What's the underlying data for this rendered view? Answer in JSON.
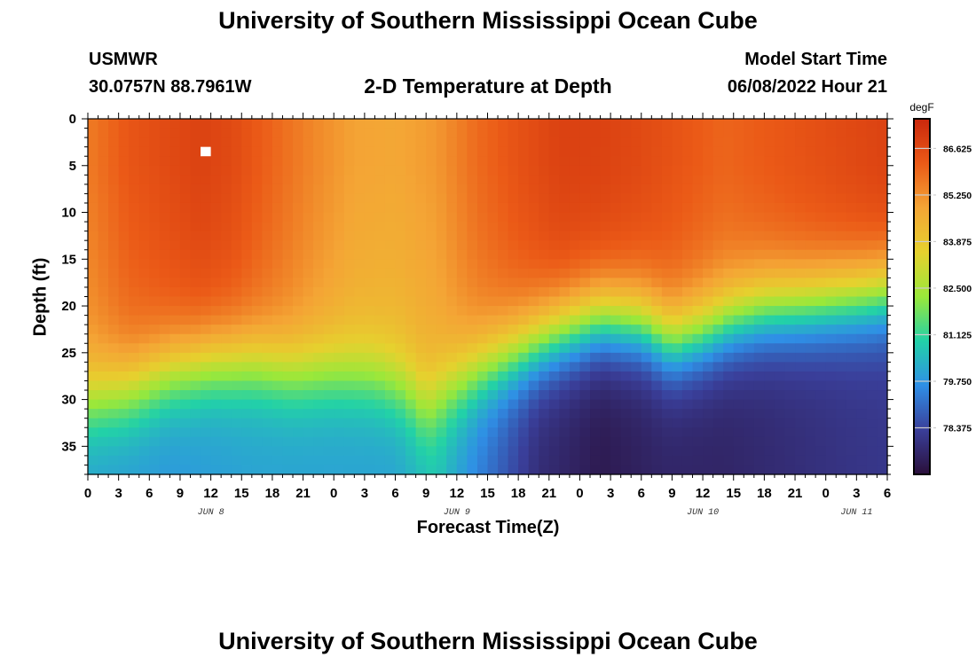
{
  "header": {
    "title": "University of Southern Mississippi Ocean Cube",
    "station": "USMWR",
    "coords": "30.0757N  88.7961W",
    "model_start_label": "Model Start Time",
    "model_start_value": "06/08/2022 Hour 21",
    "plot_title": "2-D Temperature at Depth"
  },
  "footer": {
    "title": "University of Southern Mississippi Ocean Cube"
  },
  "colors": {
    "palette": [
      "#2a0f3a",
      "#3a3f9a",
      "#2f8fe6",
      "#22d1a8",
      "#9ae83a",
      "#e6d12e",
      "#f4a535",
      "#eb5a17",
      "#c9270c"
    ],
    "missing_cell": "#ffffff"
  },
  "chart_data": {
    "type": "heatmap",
    "title": "2-D Temperature at Depth",
    "xlabel": "Forecast Time(Z)",
    "ylabel": "Depth (ft)",
    "x_tick_labels": [
      "0",
      "3",
      "6",
      "9",
      "12",
      "15",
      "18",
      "21",
      "0",
      "3",
      "6",
      "9",
      "12",
      "15",
      "18",
      "21",
      "0",
      "3",
      "6",
      "9",
      "12",
      "15",
      "18",
      "21",
      "0",
      "3",
      "6"
    ],
    "x_range_hours": [
      0,
      78
    ],
    "date_labels": [
      {
        "hour": 12,
        "text": "JUN 8"
      },
      {
        "hour": 36,
        "text": "JUN 9"
      },
      {
        "hour": 60,
        "text": "JUN 10"
      },
      {
        "hour": 75,
        "text": "JUN 11"
      }
    ],
    "y_ticks": [
      0,
      5,
      10,
      15,
      20,
      25,
      30,
      35
    ],
    "y_range_ft": [
      0,
      38
    ],
    "y_inverted": true,
    "colorbar": {
      "label": "degF",
      "min": 77.0,
      "max": 87.5,
      "tick_labels": [
        "86.625",
        "85.250",
        "83.875",
        "82.500",
        "81.125",
        "79.750",
        "78.375"
      ],
      "tick_values": [
        86.625,
        85.25,
        83.875,
        82.5,
        81.125,
        79.75,
        78.375
      ]
    },
    "thermocline_depth_ft": [
      [
        0,
        30
      ],
      [
        4,
        29
      ],
      [
        8,
        27
      ],
      [
        12,
        26
      ],
      [
        16,
        26
      ],
      [
        20,
        27
      ],
      [
        24,
        27
      ],
      [
        28,
        27.5
      ],
      [
        31,
        29
      ],
      [
        33,
        31
      ],
      [
        35,
        29
      ],
      [
        38,
        27
      ],
      [
        42,
        25
      ],
      [
        46,
        23
      ],
      [
        50,
        21.5
      ],
      [
        54,
        22
      ],
      [
        57,
        24
      ],
      [
        60,
        23
      ],
      [
        63,
        21.5
      ],
      [
        66,
        20.5
      ],
      [
        70,
        20
      ],
      [
        73,
        19.5
      ],
      [
        76,
        19
      ],
      [
        78,
        18.5
      ]
    ],
    "surface_temperature_degF": [
      [
        0,
        85.6
      ],
      [
        4,
        86.3
      ],
      [
        8,
        86.6
      ],
      [
        11,
        86.8
      ],
      [
        14,
        86.6
      ],
      [
        18,
        86.0
      ],
      [
        22,
        85.4
      ],
      [
        26,
        84.9
      ],
      [
        30,
        84.8
      ],
      [
        34,
        85.1
      ],
      [
        38,
        85.9
      ],
      [
        42,
        86.4
      ],
      [
        46,
        86.8
      ],
      [
        50,
        86.8
      ],
      [
        54,
        86.6
      ],
      [
        58,
        86.3
      ],
      [
        62,
        86.0
      ],
      [
        66,
        86.2
      ],
      [
        70,
        86.4
      ],
      [
        74,
        86.6
      ],
      [
        78,
        86.8
      ]
    ],
    "bottom_temperature_degF": [
      [
        0,
        80.0
      ],
      [
        8,
        79.8
      ],
      [
        16,
        80.0
      ],
      [
        24,
        80.0
      ],
      [
        30,
        80.0
      ],
      [
        34,
        80.6
      ],
      [
        38,
        79.4
      ],
      [
        44,
        77.8
      ],
      [
        50,
        77.3
      ],
      [
        56,
        77.6
      ],
      [
        62,
        77.6
      ],
      [
        68,
        77.8
      ],
      [
        74,
        78.0
      ],
      [
        78,
        78.1
      ]
    ],
    "missing_cell": {
      "hour": 11,
      "depth_ft": 3
    }
  }
}
